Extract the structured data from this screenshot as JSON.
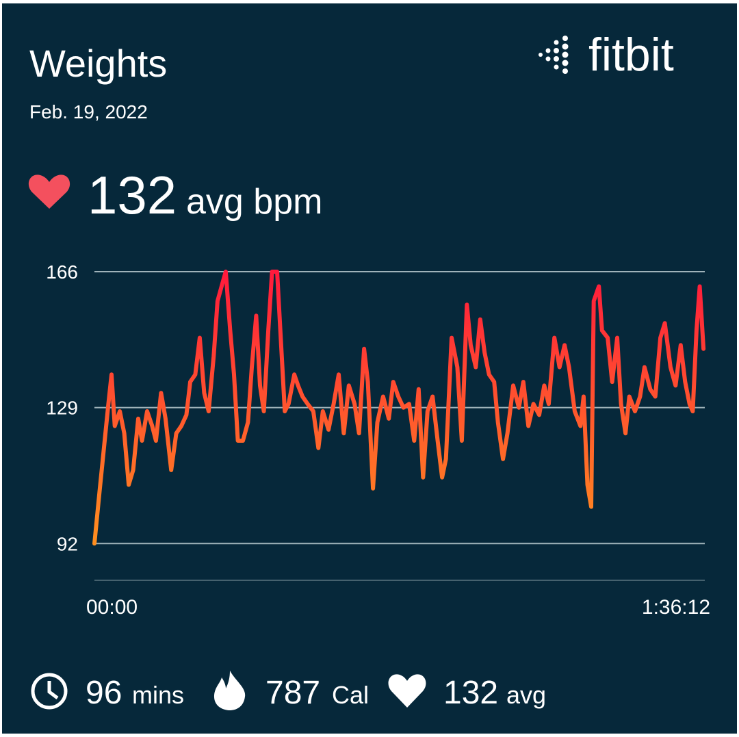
{
  "header": {
    "title": "Weights",
    "date": "Feb. 19, 2022",
    "logo": "fitbit"
  },
  "summary": {
    "value": "132",
    "unit": "avg bpm"
  },
  "stats": [
    {
      "value": "96",
      "unit": "mins"
    },
    {
      "value": "787",
      "unit": "Cal"
    },
    {
      "value": "132",
      "unit": "avg"
    }
  ],
  "chart_data": {
    "type": "line",
    "x": [
      0,
      0.8,
      1.5,
      2.2,
      2.7,
      3.2,
      4.0,
      4.7,
      5.4,
      6.1,
      6.9,
      7.5,
      8.3,
      9.1,
      9.7,
      10.5,
      11.2,
      12.1,
      12.9,
      13.7,
      14.5,
      15.1,
      15.9,
      16.6,
      17.3,
      18.0,
      18.8,
      19.4,
      20.2,
      20.7,
      21.4,
      22.0,
      22.6,
      23.4,
      24.2,
      24.8,
      25.5,
      26.1,
      26.7,
      27.4,
      28.0,
      28.8,
      29.3,
      30.0,
      30.6,
      31.5,
      32.1,
      32.8,
      33.6,
      34.5,
      35.3,
      36.0,
      36.9,
      37.7,
      38.5,
      39.3,
      40.1,
      41.0,
      41.7,
      42.5,
      43.1,
      43.9,
      44.6,
      45.5,
      46.4,
      47.1,
      47.9,
      48.7,
      49.6,
      50.4,
      51.1,
      51.8,
      52.5,
      53.3,
      54.1,
      54.8,
      55.4,
      56.3,
      57.2,
      57.9,
      58.7,
      59.3,
      60.1,
      60.8,
      61.5,
      62.2,
      63.0,
      63.6,
      64.4,
      65.1,
      66.0,
      66.9,
      67.6,
      68.4,
      69.2,
      70.1,
      70.9,
      71.6,
      72.5,
      73.3,
      74.1,
      74.8,
      75.7,
      76.6,
      77.1,
      77.7,
      78.3,
      78.7,
      79.5,
      80.0,
      80.9,
      81.6,
      82.4,
      83.0,
      83.7,
      84.3,
      85.2,
      86.0,
      86.7,
      87.6,
      88.4,
      89.2,
      89.9,
      90.8,
      91.6,
      92.4,
      93.1,
      93.8,
      94.3,
      94.9,
      95.4,
      96.0
    ],
    "series": [
      {
        "gradient": [
          "#ff1a3c",
          "#ff8f1f"
        ],
        "values": [
          92,
          106,
          118,
          130,
          138,
          124,
          128,
          122,
          108,
          112,
          126,
          120,
          128,
          124,
          120,
          133,
          126,
          112,
          122,
          124,
          127,
          136,
          138,
          148,
          133,
          128,
          143,
          158,
          163,
          166,
          150,
          138,
          120,
          120,
          125,
          140,
          154,
          135,
          128,
          150,
          166,
          166,
          150,
          128,
          130,
          138,
          135,
          132,
          130,
          128,
          118,
          128,
          123,
          130,
          138,
          122,
          135,
          130,
          122,
          145,
          136,
          107,
          125,
          132,
          126,
          136,
          132,
          129,
          130,
          120,
          134,
          110,
          128,
          132,
          120,
          110,
          115,
          148,
          140,
          120,
          157,
          146,
          140,
          153,
          144,
          138,
          136,
          125,
          115,
          122,
          135,
          129,
          136,
          124,
          130,
          127,
          135,
          130,
          148,
          140,
          146,
          140,
          128,
          124,
          132,
          108,
          102,
          158,
          162,
          150,
          148,
          136,
          148,
          130,
          122,
          132,
          128,
          132,
          140,
          134,
          132,
          148,
          152,
          140,
          135,
          146,
          136,
          130,
          128,
          150,
          162,
          145
        ]
      }
    ],
    "xlim": [
      0,
      96.2
    ],
    "xticks": [
      {
        "value": 0,
        "label": "00:00"
      },
      {
        "value": 96.2,
        "label": "1:36:12"
      }
    ],
    "ylim": [
      82,
      166
    ],
    "yticks": [
      92,
      129,
      166
    ],
    "grid": true
  }
}
